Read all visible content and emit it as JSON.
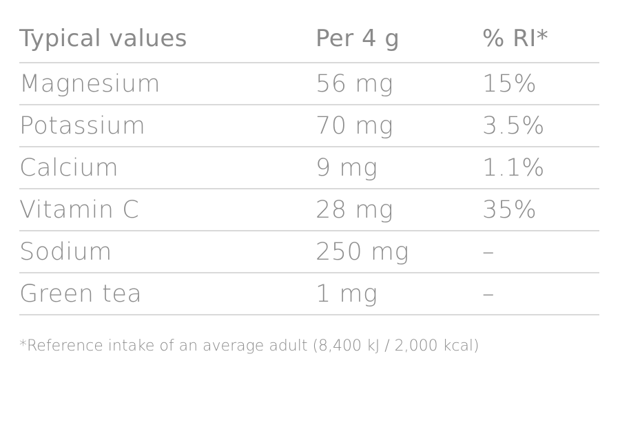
{
  "table": {
    "headers": [
      "Typical values",
      "Per 4 g",
      "% RI*"
    ],
    "rows": [
      [
        "Magnesium",
        "56 mg",
        "15%"
      ],
      [
        "Potassium",
        "70 mg",
        "3.5%"
      ],
      [
        "Calcium",
        "9 mg",
        "1.1%"
      ],
      [
        "Vitamin C",
        "28 mg",
        "35%"
      ],
      [
        "Sodium",
        "250 mg",
        "–"
      ],
      [
        "Green tea",
        "1 mg",
        "–"
      ]
    ]
  },
  "footnote": "*Reference intake of an average adult (8,400 kJ / 2,000 kcal)"
}
